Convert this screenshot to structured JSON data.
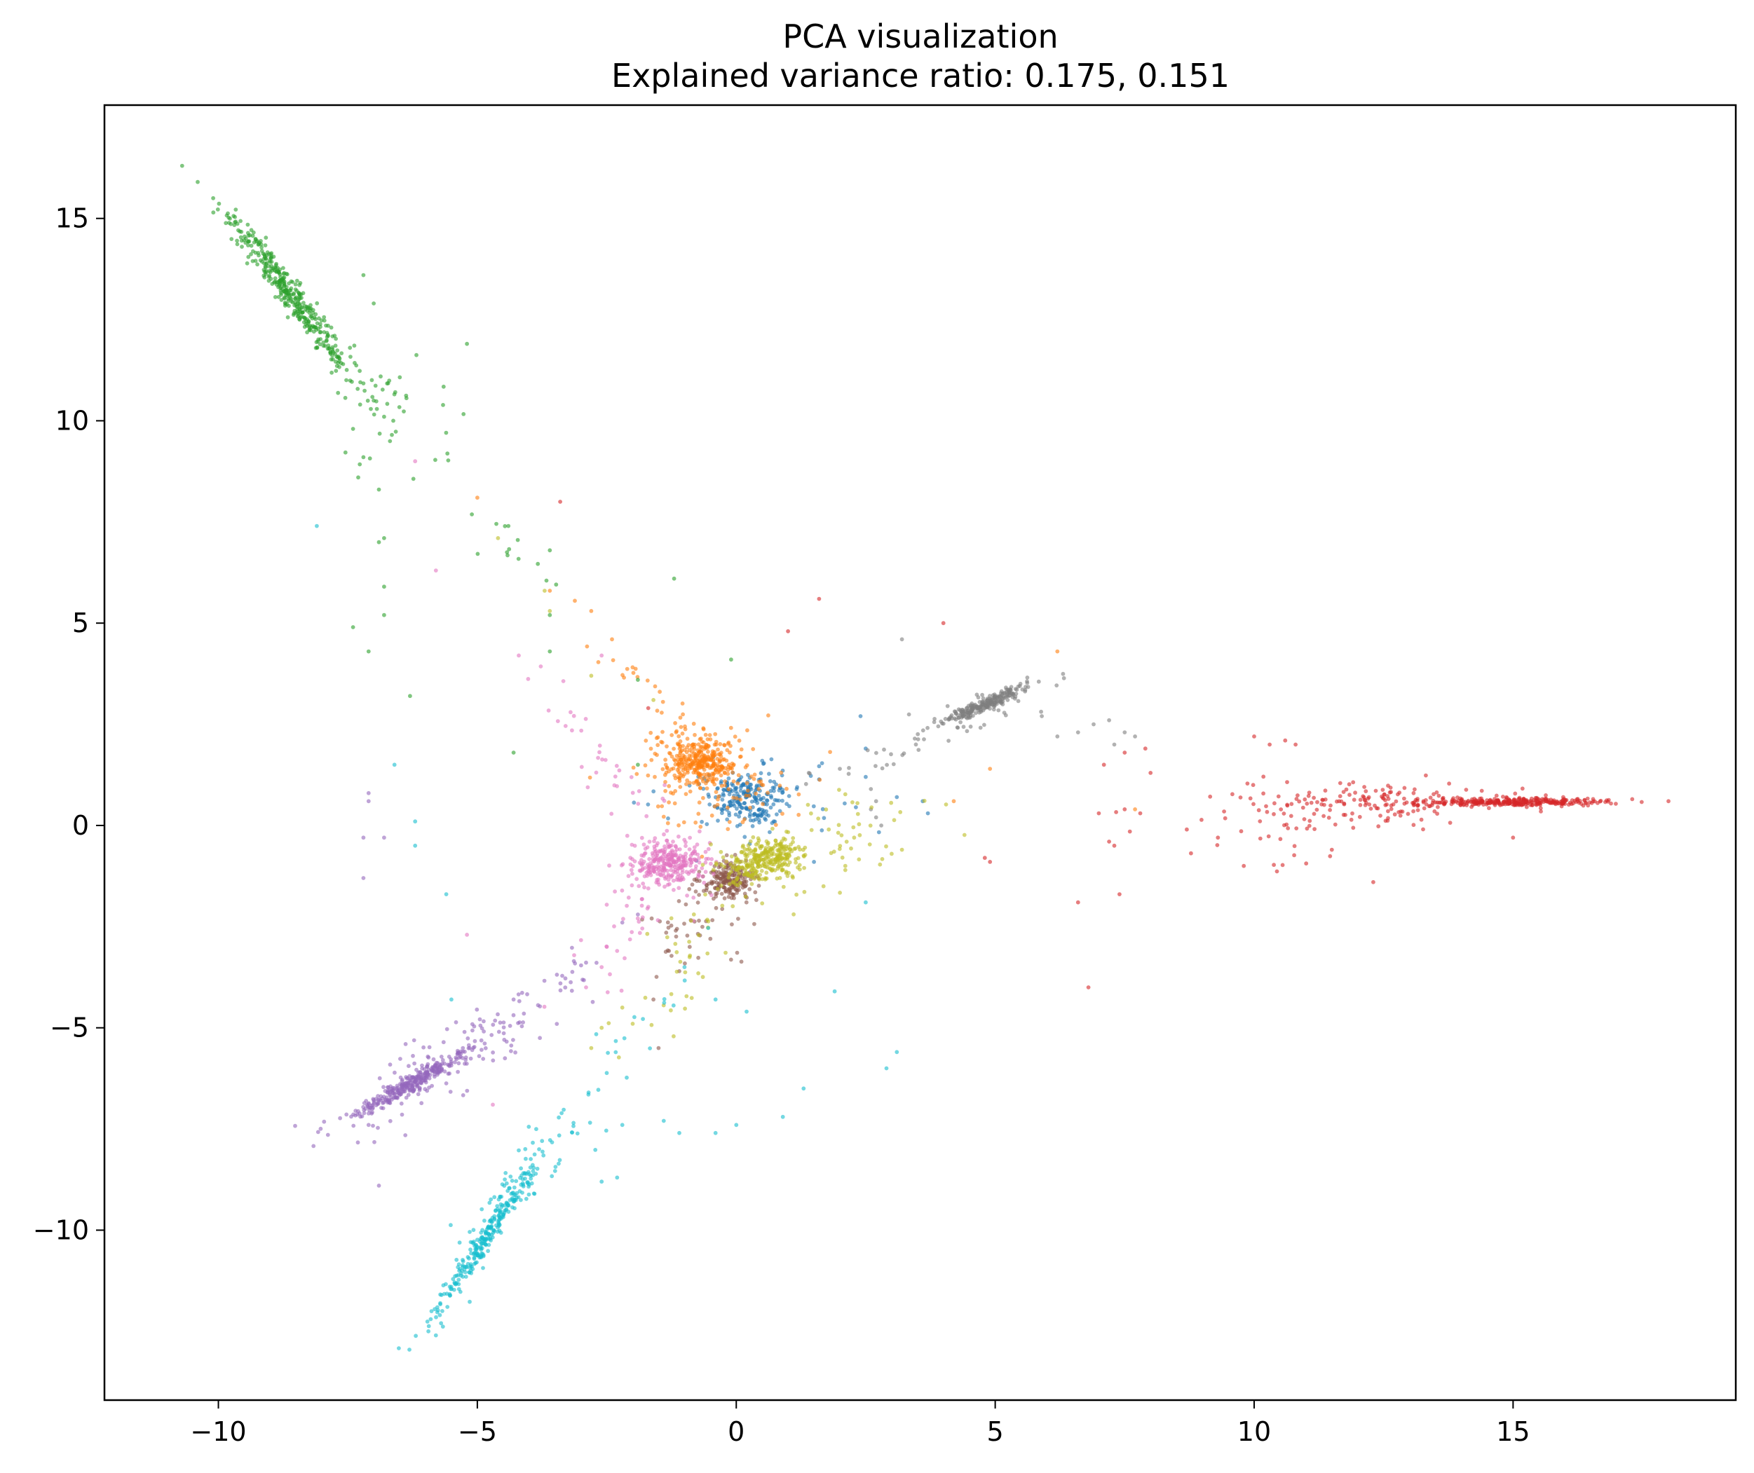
{
  "chart_data": {
    "type": "scatter",
    "title": "PCA visualization",
    "subtitle": "Explained variance ratio: 0.175, 0.151",
    "xlabel": "",
    "ylabel": "",
    "xlim": [
      -12.2,
      19.3
    ],
    "ylim": [
      -14.2,
      17.8
    ],
    "x_ticks": [
      -10,
      -5,
      0,
      5,
      10,
      15
    ],
    "x_tick_labels": [
      "−10",
      "−5",
      "0",
      "5",
      "10",
      "15"
    ],
    "y_ticks": [
      -10,
      -5,
      0,
      5,
      10,
      15
    ],
    "y_tick_labels": [
      "−10",
      "−5",
      "0",
      "5",
      "10",
      "15"
    ],
    "grid": false,
    "legend": "none",
    "marker_alpha": 0.6,
    "series": [
      {
        "color": "#1f77b4",
        "clusters": [
          {
            "center": [
              0.2,
              0.7
            ],
            "dir": [
              1,
              -0.4
            ],
            "sd_along": 0.4,
            "sd_across": 0.35,
            "n": 220
          },
          {
            "center": [
              1.0,
              0.5
            ],
            "dir": [
              1,
              0
            ],
            "sd_along": 1.2,
            "sd_across": 0.6,
            "n": 30
          }
        ],
        "points": [
          [
            2.5,
            1.9
          ],
          [
            2.5,
            1.2
          ],
          [
            3.1,
            0.7
          ],
          [
            3.6,
            0.6
          ],
          [
            3.7,
            0.3
          ],
          [
            1.5,
            -0.9
          ],
          [
            2.4,
            2.7
          ]
        ]
      },
      {
        "color": "#ff7f0e",
        "clusters": [
          {
            "center": [
              -0.7,
              1.6
            ],
            "dir": [
              1,
              -0.3
            ],
            "sd_along": 0.35,
            "sd_across": 0.3,
            "n": 260
          },
          {
            "center": [
              -0.5,
              1.2
            ],
            "dir": [
              1,
              0
            ],
            "sd_along": 0.8,
            "sd_across": 0.6,
            "n": 150
          },
          {
            "center": [
              -1.5,
              3.0
            ],
            "dir": [
              -0.6,
              0.8
            ],
            "sd_along": 1.3,
            "sd_across": 0.2,
            "n": 30
          }
        ],
        "points": [
          [
            -5.0,
            8.1
          ],
          [
            -2.8,
            5.3
          ],
          [
            -3.6,
            5.8
          ],
          [
            -2.4,
            4.6
          ],
          [
            6.2,
            4.3
          ],
          [
            4.9,
            1.4
          ],
          [
            7.7,
            0.4
          ],
          [
            4.2,
            0.6
          ]
        ]
      },
      {
        "color": "#2ca02c",
        "clusters": [
          {
            "center": [
              -8.6,
              13.1
            ],
            "dir": [
              0.5,
              -0.866
            ],
            "sd_along": 1.15,
            "sd_across": 0.12,
            "n": 380
          },
          {
            "center": [
              -6.7,
              10.4
            ],
            "dir": [
              0.55,
              -0.83
            ],
            "sd_along": 0.9,
            "sd_across": 0.5,
            "n": 45
          },
          {
            "center": [
              -4.5,
              7.0
            ],
            "dir": [
              0.6,
              -0.8
            ],
            "sd_along": 0.8,
            "sd_across": 0.25,
            "n": 12
          }
        ],
        "points": [
          [
            -10.7,
            16.3
          ],
          [
            -10.4,
            15.9
          ],
          [
            -10.1,
            15.5
          ],
          [
            -7.2,
            13.6
          ],
          [
            -7.0,
            12.9
          ],
          [
            -5.2,
            11.9
          ],
          [
            -7.0,
            10.5
          ],
          [
            -6.8,
            10.1
          ],
          [
            -7.4,
            9.8
          ],
          [
            -7.2,
            9.1
          ],
          [
            -7.3,
            8.6
          ],
          [
            -6.9,
            8.3
          ],
          [
            -6.8,
            7.1
          ],
          [
            -6.9,
            7.0
          ],
          [
            -6.8,
            5.9
          ],
          [
            -6.8,
            5.2
          ],
          [
            -7.4,
            4.9
          ],
          [
            -7.1,
            4.3
          ],
          [
            -6.3,
            3.2
          ],
          [
            -4.3,
            1.8
          ],
          [
            -4.4,
            7.4
          ],
          [
            -3.6,
            6.8
          ],
          [
            -3.6,
            5.2
          ],
          [
            -1.2,
            6.1
          ],
          [
            -0.1,
            4.1
          ],
          [
            -3.6,
            4.3
          ],
          [
            -1.9,
            3.6
          ],
          [
            -1.9,
            1.5
          ]
        ]
      },
      {
        "color": "#d62728",
        "clusters": [
          {
            "center": [
              15.0,
              0.58
            ],
            "dir": [
              1,
              0
            ],
            "sd_along": 0.95,
            "sd_across": 0.05,
            "n": 300
          },
          {
            "center": [
              12.3,
              0.55
            ],
            "dir": [
              1,
              0
            ],
            "sd_along": 1.2,
            "sd_across": 0.25,
            "n": 140
          },
          {
            "center": [
              10.6,
              0.1
            ],
            "dir": [
              1,
              0
            ],
            "sd_along": 0.8,
            "sd_across": 0.6,
            "n": 40
          }
        ],
        "points": [
          [
            18.0,
            0.6
          ],
          [
            17.3,
            0.65
          ],
          [
            10.0,
            2.2
          ],
          [
            10.3,
            2.0
          ],
          [
            10.6,
            2.1
          ],
          [
            10.8,
            2.0
          ],
          [
            9.8,
            -1.0
          ],
          [
            8.7,
            -0.1
          ],
          [
            9.3,
            -0.3
          ],
          [
            11.5,
            -0.6
          ],
          [
            12.3,
            -1.4
          ],
          [
            15.0,
            -0.3
          ],
          [
            6.8,
            -4.0
          ],
          [
            6.6,
            -1.9
          ],
          [
            7.4,
            -1.7
          ],
          [
            7.2,
            -0.4
          ],
          [
            7.3,
            -0.5
          ],
          [
            7.0,
            0.3
          ],
          [
            7.5,
            0.4
          ],
          [
            7.8,
            0.3
          ],
          [
            8.0,
            1.3
          ],
          [
            7.9,
            1.9
          ],
          [
            7.5,
            1.8
          ],
          [
            7.1,
            1.5
          ],
          [
            1.6,
            5.6
          ],
          [
            -3.4,
            8.0
          ],
          [
            4.0,
            5.0
          ],
          [
            1.0,
            4.8
          ],
          [
            -1.7,
            2.9
          ],
          [
            4.9,
            -0.9
          ],
          [
            4.8,
            -0.8
          ]
        ]
      },
      {
        "color": "#9467bd",
        "clusters": [
          {
            "center": [
              -6.3,
              -6.4
            ],
            "dir": [
              0.8,
              0.6
            ],
            "sd_along": 0.75,
            "sd_across": 0.1,
            "n": 300
          },
          {
            "center": [
              -5.6,
              -5.9
            ],
            "dir": [
              0.8,
              0.6
            ],
            "sd_along": 1.2,
            "sd_across": 0.4,
            "n": 110
          },
          {
            "center": [
              -3.5,
              -4.0
            ],
            "dir": [
              0.75,
              0.66
            ],
            "sd_along": 0.9,
            "sd_across": 0.2,
            "n": 25
          }
        ],
        "points": [
          [
            -7.1,
            0.8
          ],
          [
            -7.1,
            0.6
          ],
          [
            -7.2,
            -0.3
          ],
          [
            -6.8,
            -0.3
          ],
          [
            -7.2,
            -1.3
          ],
          [
            -6.9,
            -8.9
          ],
          [
            -7.1,
            -7.4
          ],
          [
            -4.3,
            -4.3
          ],
          [
            -2.2,
            -2.4
          ],
          [
            -1.9,
            -2.2
          ]
        ]
      },
      {
        "color": "#8c564b",
        "clusters": [
          {
            "center": [
              -0.15,
              -1.35
            ],
            "dir": [
              1,
              0
            ],
            "sd_along": 0.25,
            "sd_across": 0.22,
            "n": 200
          },
          {
            "center": [
              -0.5,
              -2.2
            ],
            "dir": [
              0.5,
              0.866
            ],
            "sd_along": 0.8,
            "sd_across": 0.5,
            "n": 45
          }
        ],
        "points": [
          [
            -1.6,
            -4.3
          ],
          [
            -1.3,
            -3.1
          ],
          [
            -1.1,
            -3.6
          ],
          [
            -0.9,
            -3.0
          ],
          [
            -1.5,
            -5.5
          ],
          [
            -0.5,
            -2.8
          ]
        ]
      },
      {
        "color": "#e377c2",
        "clusters": [
          {
            "center": [
              -1.3,
              -0.9
            ],
            "dir": [
              1,
              0.1
            ],
            "sd_along": 0.35,
            "sd_across": 0.25,
            "n": 280
          },
          {
            "center": [
              -1.7,
              -1.6
            ],
            "dir": [
              0.5,
              0.866
            ],
            "sd_along": 1.1,
            "sd_across": 0.5,
            "n": 60
          },
          {
            "center": [
              -2.4,
              1.2
            ],
            "dir": [
              -0.5,
              0.866
            ],
            "sd_along": 1.2,
            "sd_across": 0.25,
            "n": 30
          }
        ],
        "points": [
          [
            -6.2,
            9.0
          ],
          [
            -5.8,
            6.3
          ],
          [
            -3.2,
            2.8
          ],
          [
            -4.2,
            4.2
          ],
          [
            -2.6,
            4.2
          ],
          [
            -2.9,
            -4.0
          ],
          [
            -2.6,
            -3.5
          ],
          [
            -2.5,
            -3.0
          ],
          [
            -2.3,
            -3.1
          ],
          [
            -4.7,
            -6.9
          ],
          [
            -5.2,
            -2.7
          ]
        ]
      },
      {
        "color": "#7f7f7f",
        "clusters": [
          {
            "center": [
              4.8,
              3.0
            ],
            "dir": [
              0.87,
              0.5
            ],
            "sd_along": 0.45,
            "sd_across": 0.08,
            "n": 230
          },
          {
            "center": [
              4.0,
              2.4
            ],
            "dir": [
              0.87,
              0.5
            ],
            "sd_along": 1.3,
            "sd_across": 0.25,
            "n": 50
          }
        ],
        "points": [
          [
            3.2,
            4.6
          ],
          [
            5.9,
            2.7
          ],
          [
            6.2,
            2.2
          ],
          [
            6.6,
            2.3
          ],
          [
            6.9,
            2.5
          ],
          [
            7.2,
            2.6
          ],
          [
            7.5,
            2.3
          ],
          [
            7.7,
            2.2
          ],
          [
            7.3,
            2.0
          ],
          [
            2.6,
            0.9
          ],
          [
            2.7,
            0.6
          ],
          [
            2.6,
            0.4
          ],
          [
            2.7,
            0.2
          ],
          [
            2.8,
            0.0
          ],
          [
            1.4,
            1.3
          ],
          [
            2.0,
            1.4
          ]
        ]
      },
      {
        "color": "#bcbd22",
        "clusters": [
          {
            "center": [
              0.5,
              -0.85
            ],
            "dir": [
              1,
              0.35
            ],
            "sd_along": 0.35,
            "sd_across": 0.22,
            "n": 280
          },
          {
            "center": [
              1.5,
              -0.6
            ],
            "dir": [
              0.9,
              0.45
            ],
            "sd_along": 1.3,
            "sd_across": 0.45,
            "n": 90
          },
          {
            "center": [
              -1.0,
              -3.7
            ],
            "dir": [
              0.5,
              0.866
            ],
            "sd_along": 1.0,
            "sd_across": 0.35,
            "n": 30
          }
        ],
        "points": [
          [
            -3.7,
            5.8
          ],
          [
            -3.6,
            5.3
          ],
          [
            -4.6,
            7.1
          ],
          [
            -2.8,
            3.7
          ],
          [
            -1.6,
            3.1
          ],
          [
            -2.2,
            -4.5
          ],
          [
            -2.0,
            -4.9
          ],
          [
            -2.6,
            -5.0
          ],
          [
            -2.8,
            -5.5
          ],
          [
            3.0,
            -0.7
          ],
          [
            3.2,
            -0.6
          ]
        ]
      },
      {
        "color": "#17becf",
        "clusters": [
          {
            "center": [
              -4.8,
              -10.1
            ],
            "dir": [
              0.45,
              0.893
            ],
            "sd_along": 1.15,
            "sd_across": 0.08,
            "n": 260
          },
          {
            "center": [
              -4.4,
              -9.2
            ],
            "dir": [
              0.45,
              0.893
            ],
            "sd_along": 1.5,
            "sd_across": 0.25,
            "n": 70
          },
          {
            "center": [
              -2.5,
              -6.0
            ],
            "dir": [
              0.5,
              0.866
            ],
            "sd_along": 1.5,
            "sd_across": 0.3,
            "n": 25
          }
        ],
        "points": [
          [
            -8.1,
            7.4
          ],
          [
            -6.6,
            1.5
          ],
          [
            -6.2,
            0.1
          ],
          [
            -6.2,
            -0.5
          ],
          [
            -5.6,
            -1.7
          ],
          [
            -5.5,
            -4.3
          ],
          [
            -5.8,
            -12.6
          ],
          [
            -5.9,
            -12.2
          ],
          [
            -5.7,
            -12.3
          ],
          [
            3.1,
            -5.6
          ],
          [
            2.9,
            -6.0
          ],
          [
            1.3,
            -6.5
          ],
          [
            0.9,
            -7.2
          ],
          [
            0.0,
            -7.4
          ],
          [
            -0.4,
            -7.6
          ],
          [
            -1.1,
            -7.6
          ],
          [
            -1.4,
            -7.3
          ],
          [
            -2.2,
            -7.4
          ],
          [
            1.9,
            -4.1
          ],
          [
            0.2,
            -4.6
          ],
          [
            2.5,
            -1.9
          ],
          [
            -2.6,
            -8.8
          ],
          [
            -2.3,
            -8.7
          ],
          [
            -1.0,
            -3.5
          ],
          [
            -0.4,
            -4.3
          ]
        ]
      }
    ]
  }
}
